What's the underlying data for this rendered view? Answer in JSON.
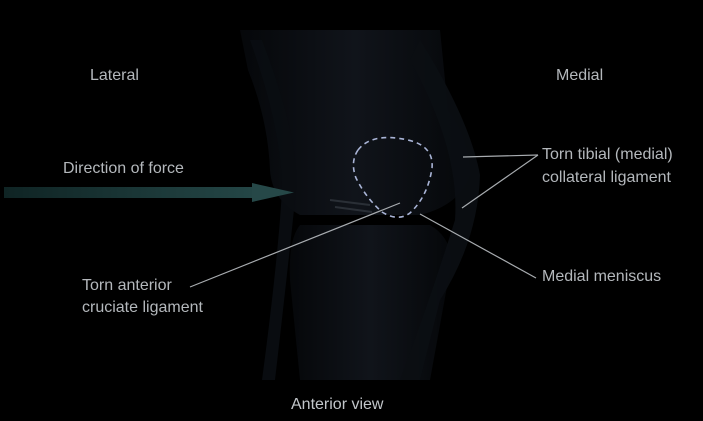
{
  "diagram": {
    "side_labels": {
      "lateral": "Lateral",
      "medial": "Medial"
    },
    "force_label": "Direction of force",
    "callouts": {
      "torn_tibial_line1": "Torn tibial (medial)",
      "torn_tibial_line2": "collateral ligament",
      "medial_meniscus": "Medial meniscus",
      "torn_acl_line1": "Torn anterior",
      "torn_acl_line2": "cruciate ligament"
    },
    "view_caption": "Anterior view",
    "colors": {
      "background": "#000000",
      "text": "#b4b8bc",
      "leader_line": "#a8acb0",
      "dashed_outline": "#a9b4d6",
      "force_arrow": "#1c3a3a",
      "anatomy_shade": "#0d1016"
    }
  }
}
